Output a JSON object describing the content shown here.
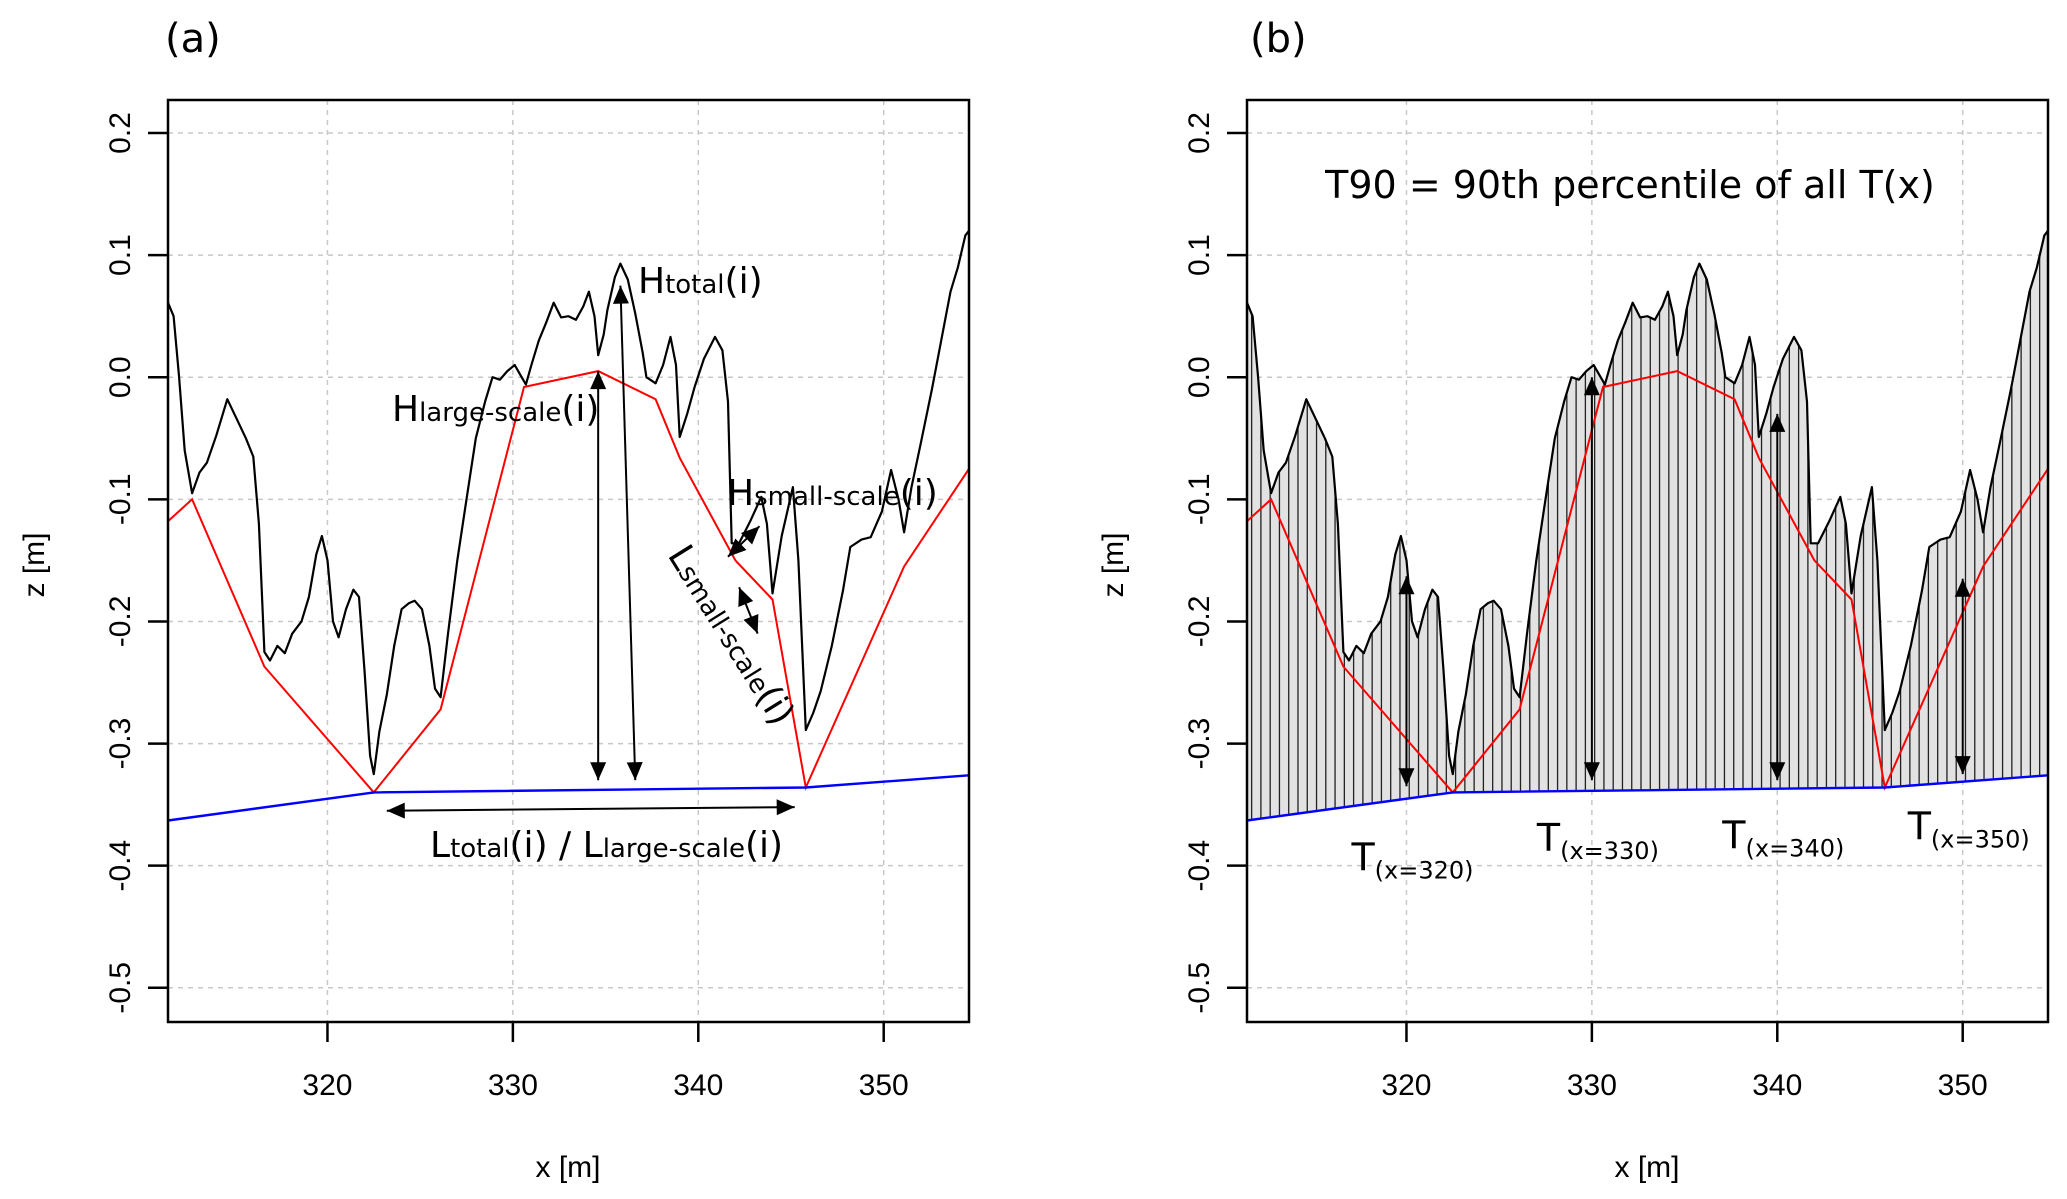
{
  "figure": {
    "panels": [
      "(a)",
      "(b)"
    ]
  },
  "chart_data": [
    {
      "type": "line",
      "panel_label": "(a)",
      "title": "",
      "xlabel": "x [m]",
      "ylabel": "z [m]",
      "xlim": [
        311.4,
        354.6
      ],
      "ylim": [
        -0.528,
        0.227
      ],
      "xticks": [
        320,
        330,
        340,
        350
      ],
      "xtick_labels": [
        "320",
        "330",
        "340",
        "350"
      ],
      "yticks": [
        0.2,
        0.1,
        0.0,
        -0.1,
        -0.2,
        -0.3,
        -0.4,
        -0.5
      ],
      "ytick_labels": [
        "0.2",
        "0.1",
        "0.0",
        "-0.1",
        "-0.2",
        "-0.3",
        "-0.4",
        "-0.5"
      ],
      "grid": true,
      "series": [
        {
          "name": "profile",
          "color": "#000000",
          "x": [
            311.4,
            311.7,
            312.0,
            312.3,
            312.7,
            313.1,
            313.5,
            314.0,
            314.6,
            315.1,
            315.6,
            316.0,
            316.3,
            316.6,
            316.9,
            317.3,
            317.7,
            318.1,
            318.6,
            319.0,
            319.4,
            319.7,
            320.0,
            320.3,
            320.6,
            321.0,
            321.4,
            321.7,
            322.0,
            322.3,
            322.5,
            322.8,
            323.2,
            323.6,
            324.0,
            324.4,
            324.7,
            325.1,
            325.5,
            325.8,
            326.1,
            326.5,
            327.0,
            327.5,
            328.0,
            328.5,
            328.9,
            329.3,
            329.7,
            330.1,
            330.4,
            330.7,
            331.0,
            331.4,
            331.8,
            332.2,
            332.6,
            333.0,
            333.4,
            333.8,
            334.1,
            334.4,
            334.6,
            334.9,
            335.1,
            335.5,
            335.8,
            336.2,
            336.6,
            337.0,
            337.2,
            337.7,
            338.1,
            338.5,
            338.8,
            339.0,
            339.4,
            339.8,
            340.3,
            340.9,
            341.3,
            341.6,
            341.8,
            342.2,
            342.8,
            343.4,
            343.7,
            344.0,
            344.5,
            345.1,
            345.4,
            345.8,
            346.2,
            346.6,
            347.2,
            347.8,
            348.2,
            348.8,
            349.3,
            349.9,
            350.4,
            350.8,
            351.1,
            351.5,
            352.0,
            352.6,
            353.1,
            353.6,
            354.0,
            354.4,
            354.6
          ],
          "y": [
            0.061,
            0.05,
            0.0,
            -0.06,
            -0.095,
            -0.078,
            -0.07,
            -0.048,
            -0.018,
            -0.034,
            -0.05,
            -0.065,
            -0.12,
            -0.225,
            -0.232,
            -0.22,
            -0.226,
            -0.21,
            -0.2,
            -0.18,
            -0.145,
            -0.13,
            -0.15,
            -0.2,
            -0.213,
            -0.19,
            -0.174,
            -0.18,
            -0.24,
            -0.31,
            -0.325,
            -0.29,
            -0.26,
            -0.22,
            -0.19,
            -0.185,
            -0.183,
            -0.19,
            -0.22,
            -0.255,
            -0.262,
            -0.21,
            -0.15,
            -0.1,
            -0.05,
            -0.02,
            0.0,
            -0.002,
            0.005,
            0.01,
            0.002,
            -0.006,
            0.01,
            0.03,
            0.045,
            0.061,
            0.049,
            0.05,
            0.047,
            0.058,
            0.07,
            0.05,
            0.018,
            0.035,
            0.055,
            0.082,
            0.093,
            0.08,
            0.052,
            0.02,
            0.0,
            -0.005,
            0.01,
            0.033,
            0.01,
            -0.049,
            -0.03,
            -0.008,
            0.015,
            0.033,
            0.022,
            -0.02,
            -0.136,
            -0.136,
            -0.118,
            -0.098,
            -0.12,
            -0.177,
            -0.13,
            -0.09,
            -0.15,
            -0.289,
            -0.275,
            -0.257,
            -0.22,
            -0.175,
            -0.139,
            -0.133,
            -0.131,
            -0.11,
            -0.076,
            -0.1,
            -0.127,
            -0.09,
            -0.054,
            -0.01,
            0.03,
            0.07,
            0.09,
            0.116,
            0.12
          ]
        },
        {
          "name": "large-scale envelope",
          "color": "#ff0000",
          "x": [
            311.4,
            312.7,
            316.6,
            322.5,
            326.1,
            330.6,
            334.6,
            337.7,
            339.0,
            342.0,
            344.0,
            345.8,
            351.1,
            354.6
          ],
          "y": [
            -0.118,
            -0.1,
            -0.237,
            -0.34,
            -0.272,
            -0.008,
            0.005,
            -0.018,
            -0.066,
            -0.15,
            -0.182,
            -0.336,
            -0.155,
            -0.075
          ]
        },
        {
          "name": "baseline",
          "color": "#0000ff",
          "x": [
            311.4,
            322.5,
            345.8,
            354.6
          ],
          "y": [
            -0.363,
            -0.34,
            -0.336,
            -0.326
          ]
        }
      ],
      "annotations": [
        {
          "id": "h_total",
          "main": "H",
          "sub": "total",
          "tail": "(i)"
        },
        {
          "id": "h_large",
          "main": "H",
          "sub": "large-scale",
          "tail": "(i)"
        },
        {
          "id": "h_small",
          "main": "H",
          "sub": "small-scale",
          "tail": "(i)"
        },
        {
          "id": "l_small",
          "main": "L",
          "sub": "small-scale",
          "tail": "(i)"
        },
        {
          "id": "l_total",
          "main": "L",
          "sub": "total",
          "tail": "(i) / ",
          "main2": "L",
          "sub2": "large-scale",
          "tail2": "(i)"
        }
      ],
      "arrows": [
        {
          "id": "h_large_arrow",
          "x1": 334.6,
          "y1": 0.005,
          "x2": 334.6,
          "y2": -0.33,
          "heads": "both"
        },
        {
          "id": "h_total_arrow",
          "x1": 335.8,
          "y1": 0.075,
          "x2": 336.6,
          "y2": -0.33,
          "heads": "both"
        },
        {
          "id": "l_total_arrow",
          "x1": 323.2,
          "y1": -0.355,
          "x2": 345.2,
          "y2": -0.352,
          "heads": "both"
        },
        {
          "id": "h_small_arrow",
          "x1": 341.6,
          "y1": -0.147,
          "x2": 343.3,
          "y2": -0.122,
          "heads": "both"
        },
        {
          "id": "l_small_arrow",
          "x1": 342.2,
          "y1": -0.172,
          "x2": 343.2,
          "y2": -0.21,
          "heads": "both"
        }
      ]
    },
    {
      "type": "area",
      "panel_label": "(b)",
      "title": "",
      "xlabel": "x [m]",
      "ylabel": "z [m]",
      "xlim": [
        311.4,
        354.6
      ],
      "ylim": [
        -0.528,
        0.227
      ],
      "xticks": [
        320,
        330,
        340,
        350
      ],
      "xtick_labels": [
        "320",
        "330",
        "340",
        "350"
      ],
      "yticks": [
        0.2,
        0.1,
        0.0,
        -0.1,
        -0.2,
        -0.3,
        -0.4,
        -0.5
      ],
      "ytick_labels": [
        "0.2",
        "0.1",
        "0.0",
        "-0.1",
        "-0.2",
        "-0.3",
        "-0.4",
        "-0.5"
      ],
      "grid": true,
      "fill_color": "#e2e2e2",
      "hatch_spacing_m": 0.5,
      "note": "T90 = 90th percentile of all T(x)",
      "t_markers": [
        {
          "x": 320,
          "top": -0.163,
          "bottom": -0.335,
          "label_main": "T",
          "label_sub": "(x=320)"
        },
        {
          "x": 330,
          "top": 0.0,
          "bottom": -0.33,
          "label_main": "T",
          "label_sub": "(x=330)"
        },
        {
          "x": 340,
          "top": -0.03,
          "bottom": -0.33,
          "label_main": "T",
          "label_sub": "(x=340)"
        },
        {
          "x": 350,
          "top": -0.165,
          "bottom": -0.325,
          "label_main": "T",
          "label_sub": "(x=350)"
        }
      ]
    }
  ]
}
